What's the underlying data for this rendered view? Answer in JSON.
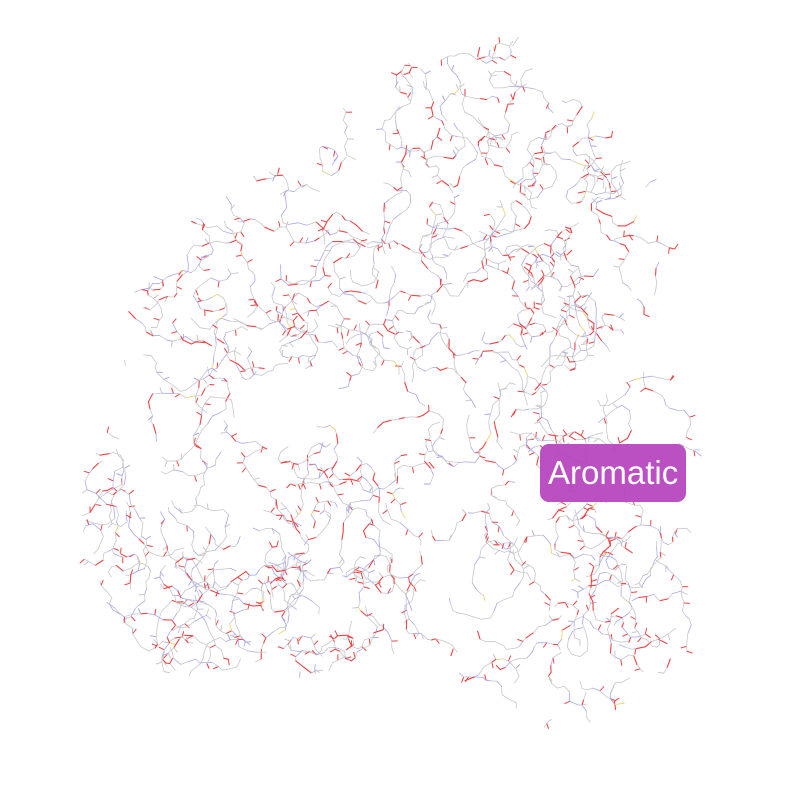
{
  "viewer": {
    "label": "Aromatic",
    "label_color": "#b94bc2",
    "background": "#ffffff",
    "atom_colors": {
      "carbon": "#c8c8cc",
      "nitrogen": "#a8a8ee",
      "oxygen": "#ee4444",
      "sulfur": "#f0d060"
    }
  }
}
